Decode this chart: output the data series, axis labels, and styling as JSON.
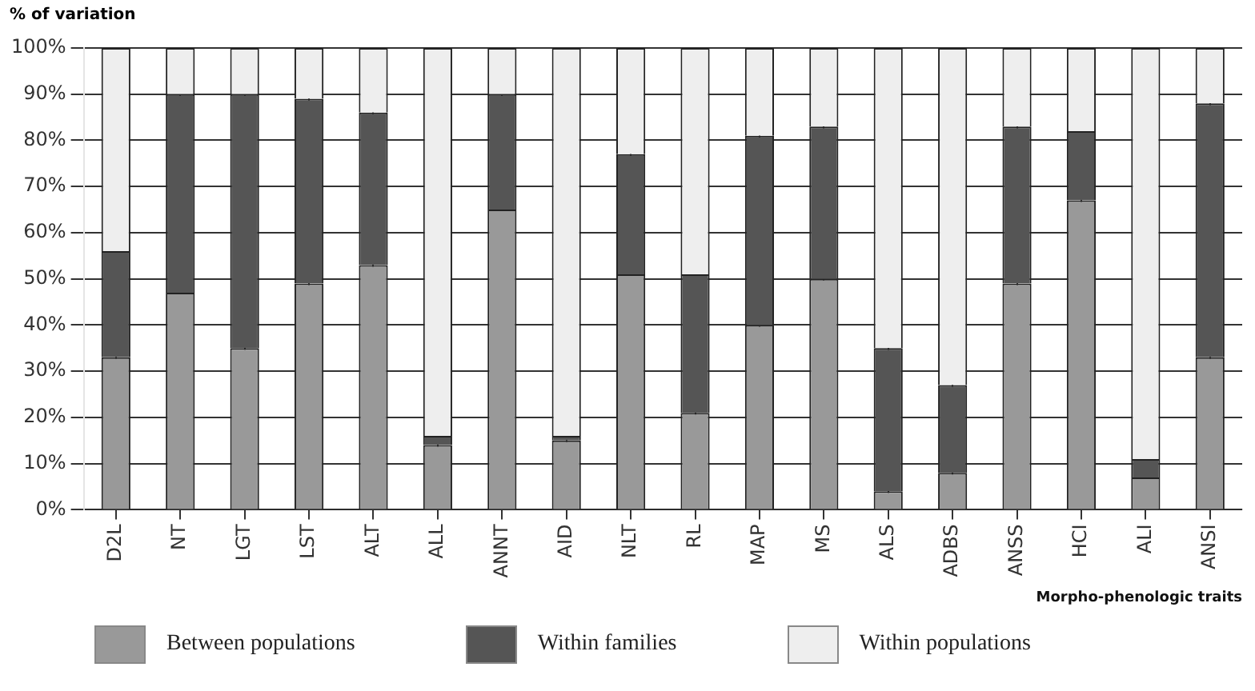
{
  "chart_data": {
    "type": "bar",
    "stacked": true,
    "ylabel": "% of variation",
    "xlabel": "Morpho-phenologic traits",
    "categories": [
      "D2L",
      "NT",
      "LGT",
      "LST",
      "ALT",
      "ALL",
      "ANNT",
      "AID",
      "NLT",
      "RL",
      "MAP",
      "MS",
      "ALS",
      "ADBS",
      "ANSS",
      "HCI",
      "ALI",
      "ANSI"
    ],
    "series": [
      {
        "name": "Between populations",
        "color": "#999999",
        "values": [
          33,
          47,
          35,
          49,
          53,
          14,
          65,
          15,
          51,
          21,
          40,
          50,
          4,
          8,
          49,
          67,
          7,
          33
        ]
      },
      {
        "name": "Within families",
        "color": "#555555",
        "values": [
          23,
          43,
          55,
          40,
          33,
          2,
          25,
          1,
          26,
          30,
          41,
          33,
          31,
          19,
          34,
          15,
          4,
          55
        ]
      },
      {
        "name": "Within populations",
        "color": "#eeeeee",
        "values": [
          44,
          10,
          10,
          11,
          14,
          84,
          10,
          84,
          23,
          49,
          19,
          17,
          65,
          73,
          17,
          18,
          89,
          12
        ]
      }
    ],
    "ylim": [
      0,
      100
    ],
    "yticks": [
      {
        "value": 0,
        "label": "0%"
      },
      {
        "value": 10,
        "label": "10%"
      },
      {
        "value": 20,
        "label": "20%"
      },
      {
        "value": 30,
        "label": "30%"
      },
      {
        "value": 40,
        "label": "40%"
      },
      {
        "value": 50,
        "label": "50%"
      },
      {
        "value": 60,
        "label": "60%"
      },
      {
        "value": 70,
        "label": "70%"
      },
      {
        "value": 80,
        "label": "80%"
      },
      {
        "value": 90,
        "label": "90%"
      },
      {
        "value": 100,
        "label": "100%"
      }
    ],
    "grid": true,
    "legend": "bottom"
  }
}
